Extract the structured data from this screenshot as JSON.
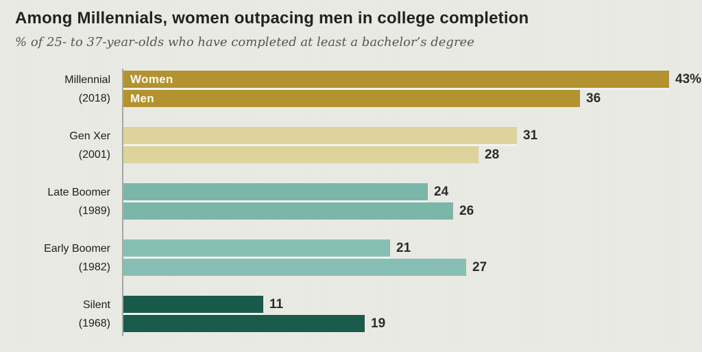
{
  "page": {
    "background_color": "#E9EAE4"
  },
  "chart_data": {
    "type": "bar",
    "orientation": "horizontal",
    "title": "Among Millennials, women outpacing men in college completion",
    "subtitle": "% of 25- to 37-year-olds who have completed at least a bachelor’s degree",
    "unit": "percent",
    "xlim": [
      0,
      46
    ],
    "grid": false,
    "legend_position": "inside-first-bar-pair",
    "axis_line_color": "#A7AAA2",
    "series": [
      "Women",
      "Men"
    ],
    "groups": [
      {
        "label": "Millennial",
        "year": "(2018)",
        "color": "#B3922F",
        "values": [
          43,
          36
        ],
        "value_labels": [
          "43%",
          "36"
        ],
        "show_series_labels": true
      },
      {
        "label": "Gen Xer",
        "year": "(2001)",
        "color": "#DCD49B",
        "values": [
          31,
          28
        ],
        "value_labels": [
          "31",
          "28"
        ],
        "show_series_labels": false
      },
      {
        "label": "Late Boomer",
        "year": "(1989)",
        "color": "#7BB6AA",
        "values": [
          24,
          26
        ],
        "value_labels": [
          "24",
          "26"
        ],
        "show_series_labels": false
      },
      {
        "label": "Early Boomer",
        "year": "(1982)",
        "color": "#87BFB4",
        "values": [
          21,
          27
        ],
        "value_labels": [
          "21",
          "27"
        ],
        "show_series_labels": false
      },
      {
        "label": "Silent",
        "year": "(1968)",
        "color": "#1A5A4A",
        "values": [
          11,
          19
        ],
        "value_labels": [
          "11",
          "19"
        ],
        "show_series_labels": false
      }
    ]
  }
}
